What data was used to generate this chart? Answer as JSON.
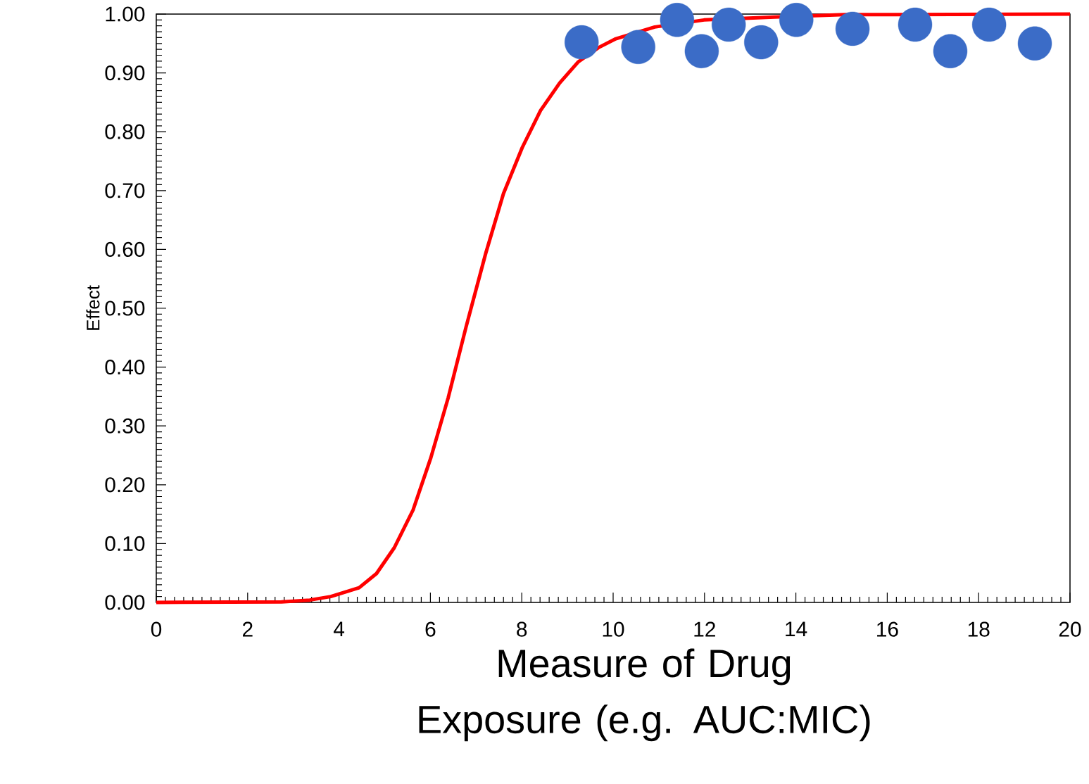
{
  "chart_data": {
    "type": "scatter",
    "xlabel": "Measure of Drug Exposure (e.g. AUC:MIC)",
    "ylabel": "Effect",
    "xlim": [
      0,
      20
    ],
    "ylim": [
      0,
      1
    ],
    "xticks": [
      0,
      2,
      4,
      6,
      8,
      10,
      12,
      14,
      16,
      18,
      20
    ],
    "yticks": [
      {
        "value": 0,
        "label": "0.00"
      },
      {
        "value": 0.1,
        "label": "0.10"
      },
      {
        "value": 0.2,
        "label": "0.20"
      },
      {
        "value": 0.3,
        "label": "0.30"
      },
      {
        "value": 0.4,
        "label": "0.40"
      },
      {
        "value": 0.5,
        "label": "0.50"
      },
      {
        "value": 0.6,
        "label": "0.60"
      },
      {
        "value": 0.7,
        "label": "0.70"
      },
      {
        "value": 0.8,
        "label": "0.80"
      },
      {
        "value": 0.9,
        "label": "0.90"
      },
      {
        "value": 1,
        "label": "1.00"
      }
    ],
    "series": [
      {
        "type": "line",
        "color": "#ff0000",
        "marker": "none",
        "line_style": "solid",
        "x": [
          0,
          2.74,
          3.36,
          3.82,
          4.44,
          4.82,
          5.21,
          5.62,
          6.01,
          6.39,
          6.78,
          7.21,
          7.6,
          8.01,
          8.41,
          8.83,
          9.24,
          9.68,
          10.06,
          10.45,
          10.91,
          11.37,
          11.99,
          13.53,
          15.07,
          20
        ],
        "values": [
          0,
          0.001,
          0.004,
          0.01,
          0.025,
          0.049,
          0.093,
          0.157,
          0.246,
          0.348,
          0.468,
          0.593,
          0.695,
          0.773,
          0.836,
          0.883,
          0.919,
          0.943,
          0.958,
          null,
          0.978,
          null,
          0.99,
          0.995,
          0.999,
          1.0
        ]
      },
      {
        "color": "#3b6cc7",
        "x": [
          9.31,
          10.55,
          11.4,
          11.94,
          12.53,
          13.24,
          14.01,
          15.24,
          16.61,
          17.38,
          18.23,
          19.23
        ],
        "values": [
          0.952,
          0.944,
          0.99,
          0.937,
          0.982,
          0.952,
          0.99,
          0.975,
          0.982,
          0.937,
          0.982,
          0.95
        ]
      }
    ]
  }
}
